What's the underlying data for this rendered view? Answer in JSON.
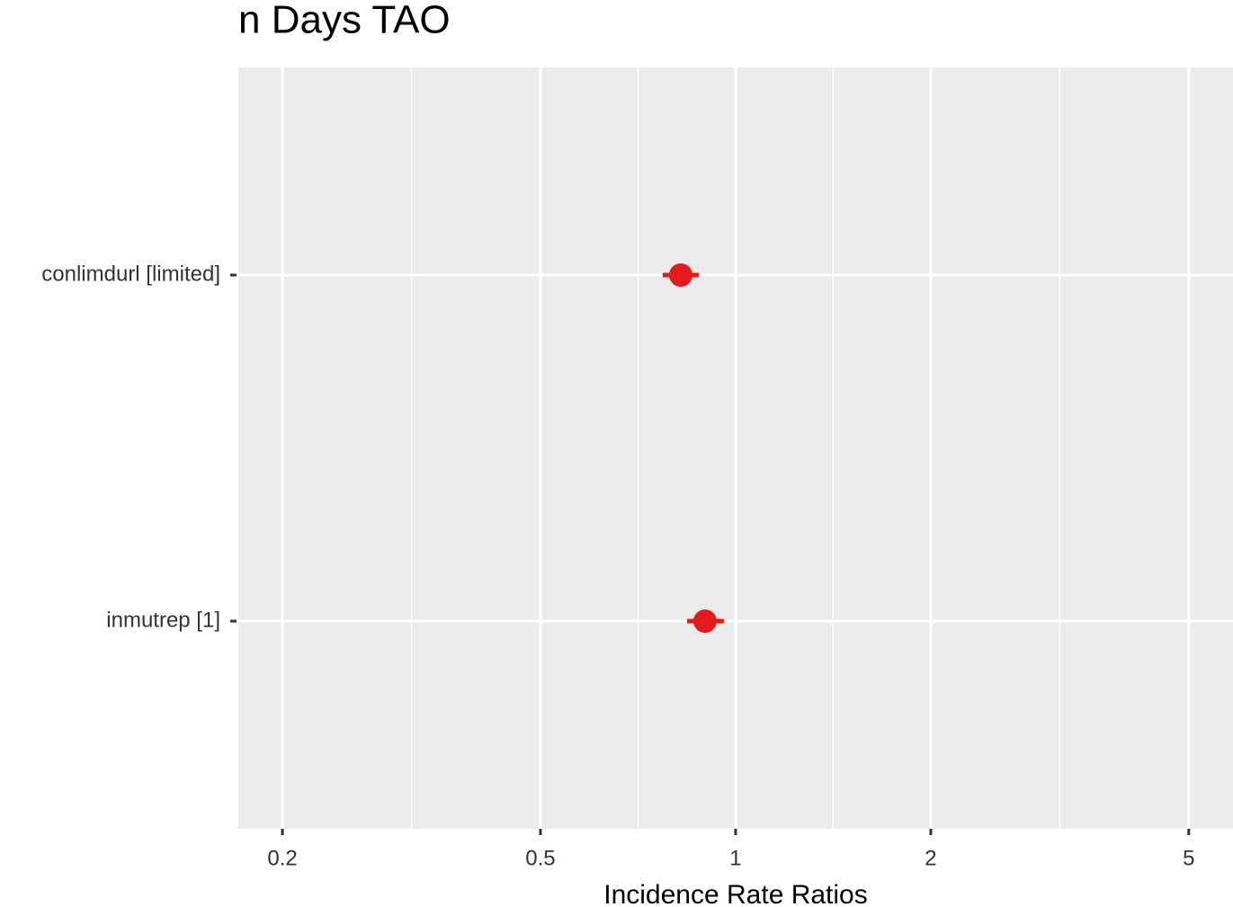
{
  "chart_data": {
    "type": "forest",
    "title": "n Days TAO",
    "x_label": "Incidence Rate Ratios",
    "categories": [
      "conlimdurl [limited]",
      "inmutrep [1]"
    ],
    "series": [
      {
        "color": "#e41a1c",
        "values": [
          0.823,
          0.897
        ],
        "ci_low": [
          0.772,
          0.842
        ],
        "ci_high": [
          0.877,
          0.959
        ]
      }
    ],
    "xscale": "log",
    "xlim": [
      0.171,
      5.85
    ],
    "xticks": [
      0.2,
      0.5,
      1,
      2,
      5
    ],
    "grid": true
  }
}
